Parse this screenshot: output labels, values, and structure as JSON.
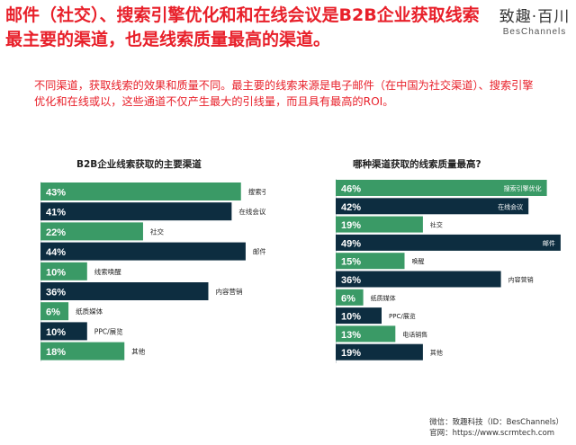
{
  "title": "邮件（社交）、搜索引擎优化和和在线会议是B2B企业获取线索最主要的渠道，也是线索质量最高的渠道。",
  "brand": {
    "name": "致趣·百川",
    "name_en": "BesChannels"
  },
  "intro": "不同渠道，获取线索的效果和质量不同。最主要的线索来源是电子邮件（在中国为社交渠道）、搜索引擎优化和在线或以，这些通道不仅产生最大的引线量，而且具有最高的ROI。",
  "footer": {
    "wechat": "微信：致趣科技（ID：BesChannels）",
    "website": "官网：https://www.scrmtech.com"
  },
  "colors": {
    "green": "#3a9a66",
    "navy": "#0d2d40",
    "red": "#e8202a"
  },
  "chart_data": [
    {
      "type": "bar",
      "orientation": "horizontal",
      "title": "B2B企业线索获取的主要渠道",
      "categories": [
        "搜索引擎优化",
        "在线会议",
        "社交",
        "邮件",
        "线索唤醒",
        "内容营销",
        "纸质媒体",
        "PPC/展览",
        "其他"
      ],
      "values": [
        43,
        41,
        22,
        44,
        10,
        36,
        6,
        10,
        18
      ],
      "value_labels": [
        "43%",
        "41%",
        "22%",
        "44%",
        "10%",
        "36%",
        "6%",
        "10%",
        "18%"
      ],
      "bar_colors": [
        "#3a9a66",
        "#0d2d40",
        "#3a9a66",
        "#0d2d40",
        "#3a9a66",
        "#0d2d40",
        "#3a9a66",
        "#0d2d40",
        "#3a9a66"
      ],
      "xlim": [
        0,
        50
      ]
    },
    {
      "type": "bar",
      "orientation": "horizontal",
      "title": "哪种渠道获取的线索质量最高?",
      "categories": [
        "搜索引擎优化",
        "在线会议",
        "社交",
        "邮件",
        "唤醒",
        "内容营销",
        "纸质媒体",
        "PPC/展览",
        "电话销售",
        "其他"
      ],
      "values": [
        46,
        42,
        19,
        49,
        15,
        36,
        6,
        10,
        13,
        19
      ],
      "value_labels": [
        "46%",
        "42%",
        "19%",
        "49%",
        "15%",
        "36%",
        "6%",
        "10%",
        "13%",
        "19%"
      ],
      "bar_colors": [
        "#3a9a66",
        "#0d2d40",
        "#3a9a66",
        "#0d2d40",
        "#3a9a66",
        "#0d2d40",
        "#3a9a66",
        "#0d2d40",
        "#3a9a66",
        "#0d2d40"
      ],
      "label_inside": [
        true,
        true,
        false,
        true,
        false,
        false,
        false,
        false,
        false,
        false
      ],
      "xlim": [
        0,
        50
      ]
    }
  ]
}
